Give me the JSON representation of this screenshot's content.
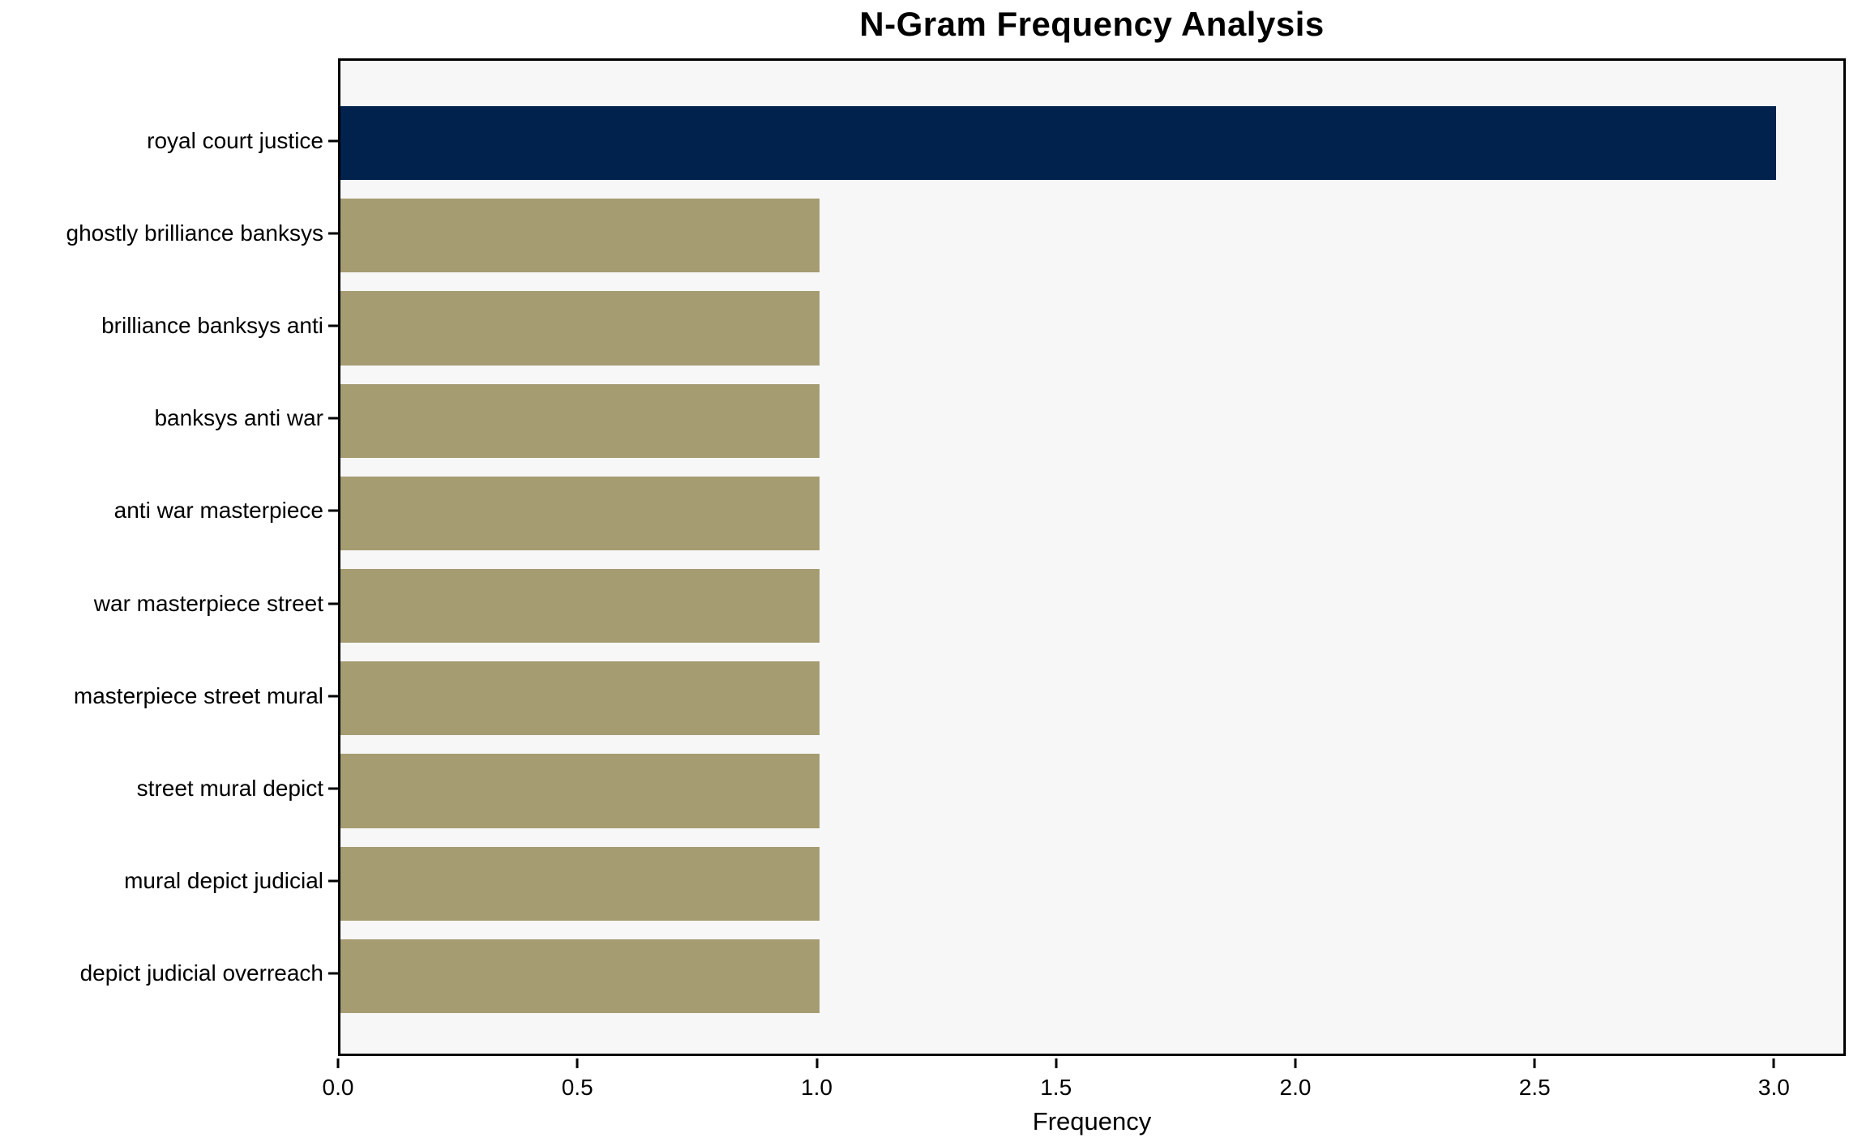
{
  "chart_data": {
    "type": "bar",
    "orientation": "horizontal",
    "title": "N-Gram Frequency Analysis",
    "xlabel": "Frequency",
    "ylabel": "",
    "categories": [
      "royal court justice",
      "ghostly brilliance banksys",
      "brilliance banksys anti",
      "banksys anti war",
      "anti war masterpiece",
      "war masterpiece street",
      "masterpiece street mural",
      "street mural depict",
      "mural depict judicial",
      "depict judicial overreach"
    ],
    "values": [
      3,
      1,
      1,
      1,
      1,
      1,
      1,
      1,
      1,
      1
    ],
    "bar_colors": [
      "#01224d",
      "#a59c72",
      "#a59c72",
      "#a59c72",
      "#a59c72",
      "#a59c72",
      "#a59c72",
      "#a59c72",
      "#a59c72",
      "#a59c72"
    ],
    "xlim": [
      0,
      3.15
    ],
    "xticks": [
      0.0,
      0.5,
      1.0,
      1.5,
      2.0,
      2.5,
      3.0
    ],
    "xtick_labels": [
      "0.0",
      "0.5",
      "1.0",
      "1.5",
      "2.0",
      "2.5",
      "3.0"
    ],
    "grid": false,
    "legend": null,
    "colors": {
      "highlight_bar": "#01224d",
      "default_bar": "#a59c72",
      "plot_background": "#f7f7f7",
      "figure_background": "#ffffff",
      "spine": "#000000",
      "text": "#000000"
    }
  }
}
